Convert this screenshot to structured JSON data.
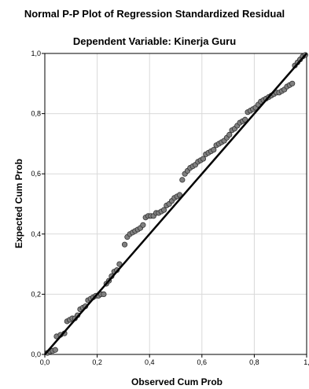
{
  "chart_data": {
    "type": "scatter",
    "title": "Normal P-P Plot of Regression Standardized Residual",
    "subtitle": "Dependent Variable: Kinerja Guru",
    "xlabel": "Observed Cum Prob",
    "ylabel": "Expected Cum Prob",
    "xlim": [
      0,
      1
    ],
    "ylim": [
      0,
      1
    ],
    "x_ticks": [
      "0,0",
      "0,2",
      "0,4",
      "0,6",
      "0,8",
      "1,"
    ],
    "y_ticks": [
      "0,0",
      "0,2",
      "0,4",
      "0,6",
      "0,8",
      "1,0"
    ],
    "grid": true,
    "reference_line": {
      "from": [
        0,
        0
      ],
      "to": [
        1,
        1
      ]
    },
    "marker_color": "#808080",
    "points": [
      [
        0.01,
        0.005
      ],
      [
        0.02,
        0.01
      ],
      [
        0.03,
        0.012
      ],
      [
        0.04,
        0.015
      ],
      [
        0.045,
        0.06
      ],
      [
        0.06,
        0.065
      ],
      [
        0.075,
        0.07
      ],
      [
        0.085,
        0.11
      ],
      [
        0.095,
        0.115
      ],
      [
        0.105,
        0.12
      ],
      [
        0.115,
        0.12
      ],
      [
        0.125,
        0.13
      ],
      [
        0.135,
        0.15
      ],
      [
        0.145,
        0.155
      ],
      [
        0.155,
        0.16
      ],
      [
        0.165,
        0.18
      ],
      [
        0.175,
        0.185
      ],
      [
        0.185,
        0.19
      ],
      [
        0.195,
        0.195
      ],
      [
        0.205,
        0.195
      ],
      [
        0.215,
        0.2
      ],
      [
        0.225,
        0.2
      ],
      [
        0.235,
        0.235
      ],
      [
        0.245,
        0.245
      ],
      [
        0.255,
        0.26
      ],
      [
        0.265,
        0.275
      ],
      [
        0.275,
        0.28
      ],
      [
        0.285,
        0.3
      ],
      [
        0.305,
        0.365
      ],
      [
        0.315,
        0.39
      ],
      [
        0.325,
        0.4
      ],
      [
        0.335,
        0.405
      ],
      [
        0.345,
        0.41
      ],
      [
        0.355,
        0.415
      ],
      [
        0.365,
        0.42
      ],
      [
        0.375,
        0.43
      ],
      [
        0.385,
        0.455
      ],
      [
        0.395,
        0.46
      ],
      [
        0.405,
        0.46
      ],
      [
        0.415,
        0.46
      ],
      [
        0.425,
        0.47
      ],
      [
        0.435,
        0.47
      ],
      [
        0.445,
        0.475
      ],
      [
        0.455,
        0.48
      ],
      [
        0.465,
        0.495
      ],
      [
        0.475,
        0.5
      ],
      [
        0.485,
        0.51
      ],
      [
        0.495,
        0.52
      ],
      [
        0.505,
        0.525
      ],
      [
        0.515,
        0.53
      ],
      [
        0.525,
        0.58
      ],
      [
        0.535,
        0.6
      ],
      [
        0.545,
        0.61
      ],
      [
        0.555,
        0.62
      ],
      [
        0.565,
        0.625
      ],
      [
        0.575,
        0.63
      ],
      [
        0.585,
        0.64
      ],
      [
        0.595,
        0.645
      ],
      [
        0.605,
        0.65
      ],
      [
        0.615,
        0.665
      ],
      [
        0.625,
        0.67
      ],
      [
        0.635,
        0.675
      ],
      [
        0.645,
        0.68
      ],
      [
        0.655,
        0.695
      ],
      [
        0.665,
        0.7
      ],
      [
        0.675,
        0.705
      ],
      [
        0.685,
        0.71
      ],
      [
        0.695,
        0.72
      ],
      [
        0.705,
        0.73
      ],
      [
        0.715,
        0.745
      ],
      [
        0.725,
        0.75
      ],
      [
        0.735,
        0.76
      ],
      [
        0.745,
        0.77
      ],
      [
        0.755,
        0.775
      ],
      [
        0.765,
        0.78
      ],
      [
        0.775,
        0.805
      ],
      [
        0.785,
        0.81
      ],
      [
        0.795,
        0.815
      ],
      [
        0.805,
        0.82
      ],
      [
        0.815,
        0.83
      ],
      [
        0.825,
        0.84
      ],
      [
        0.835,
        0.845
      ],
      [
        0.845,
        0.85
      ],
      [
        0.855,
        0.855
      ],
      [
        0.865,
        0.86
      ],
      [
        0.875,
        0.865
      ],
      [
        0.885,
        0.87
      ],
      [
        0.895,
        0.87
      ],
      [
        0.905,
        0.875
      ],
      [
        0.915,
        0.88
      ],
      [
        0.925,
        0.89
      ],
      [
        0.935,
        0.895
      ],
      [
        0.945,
        0.9
      ],
      [
        0.955,
        0.96
      ],
      [
        0.965,
        0.97
      ],
      [
        0.975,
        0.98
      ],
      [
        0.985,
        0.99
      ],
      [
        0.995,
        0.995
      ]
    ]
  }
}
